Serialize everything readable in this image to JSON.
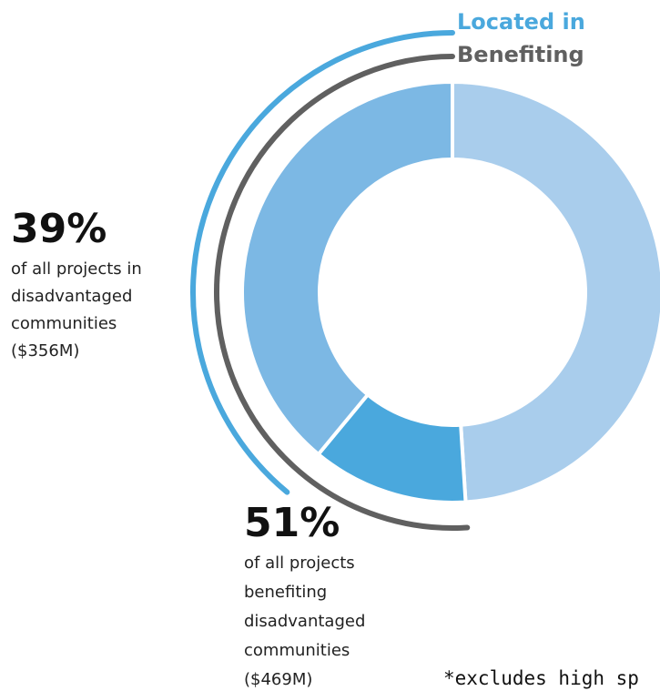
{
  "chart_data": {
    "type": "donut",
    "values": [
      49,
      12,
      39
    ],
    "colors": [
      "#a9cdec",
      "#4aa8dd",
      "#7cb8e4"
    ],
    "series": [
      {
        "name": "Located in",
        "color": "#4aa8dd",
        "value": 39,
        "value_label": "39%",
        "lines": [
          "of all projects in",
          "disadvantaged",
          "communities",
          "($356M)"
        ]
      },
      {
        "name": "Benefiting",
        "color": "#606060",
        "value": 51,
        "value_label": "51%",
        "lines": [
          "of all projects",
          "benefiting",
          "disadvantaged",
          "communities",
          "($469M)"
        ]
      }
    ],
    "footnote": "*excludes high sp"
  }
}
